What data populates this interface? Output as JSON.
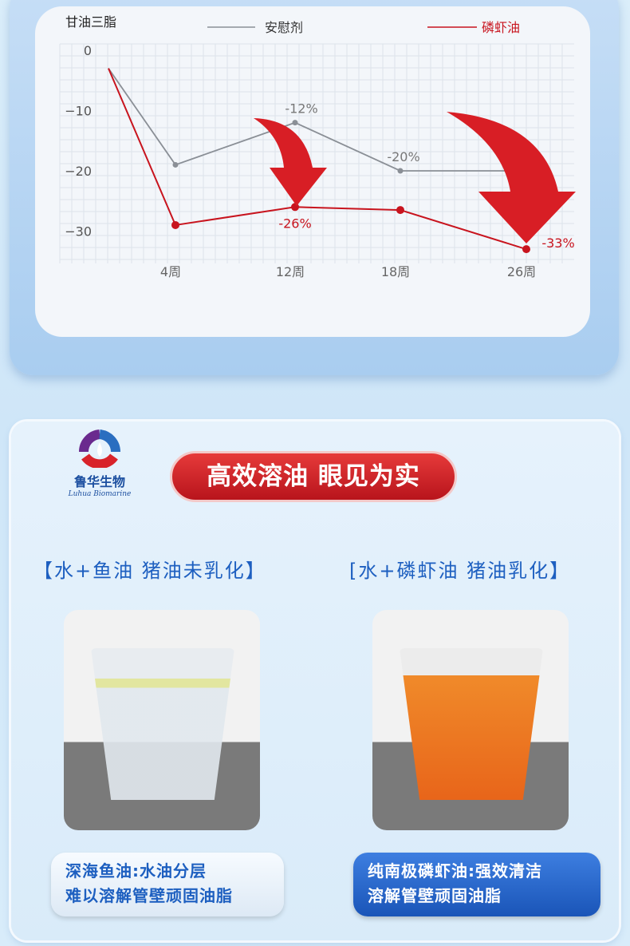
{
  "chart_data": {
    "type": "line",
    "ylabel": "甘油三脂",
    "categories": [
      "",
      "4周",
      "12周",
      "18周",
      "26周"
    ],
    "yticks": [
      0,
      -10,
      -20,
      -30
    ],
    "ylim": [
      -35,
      0
    ],
    "grid": true,
    "legend_placement": "top",
    "series": [
      {
        "name": "安慰剂",
        "color": "#8a8f96",
        "values": [
          -3,
          -19,
          -12,
          -20,
          -20
        ],
        "labels": {
          "2": "-12%",
          "3": "-20%"
        }
      },
      {
        "name": "磷虾油",
        "color": "#c8141e",
        "values": [
          -3,
          -29,
          -26,
          -26.5,
          -33
        ],
        "labels": {
          "2": "-26%",
          "4": "-33%"
        }
      }
    ]
  },
  "logo": {
    "name": "鲁华生物",
    "en": "Luhua Biomarine"
  },
  "banner": "高效溶油 眼见为实",
  "left": {
    "caption": "【水+鱼油 猪油未乳化】",
    "label1": "深海鱼油:水油分层",
    "label2": "难以溶解管壁顽固油脂"
  },
  "right": {
    "caption": "[水+磷虾油 猪油乳化】",
    "label1": "纯南极磷虾油:强效清洁",
    "label2": "溶解管壁顽固油脂"
  },
  "colors": {
    "accent_red": "#c8141e",
    "accent_blue": "#1d5fc0"
  }
}
